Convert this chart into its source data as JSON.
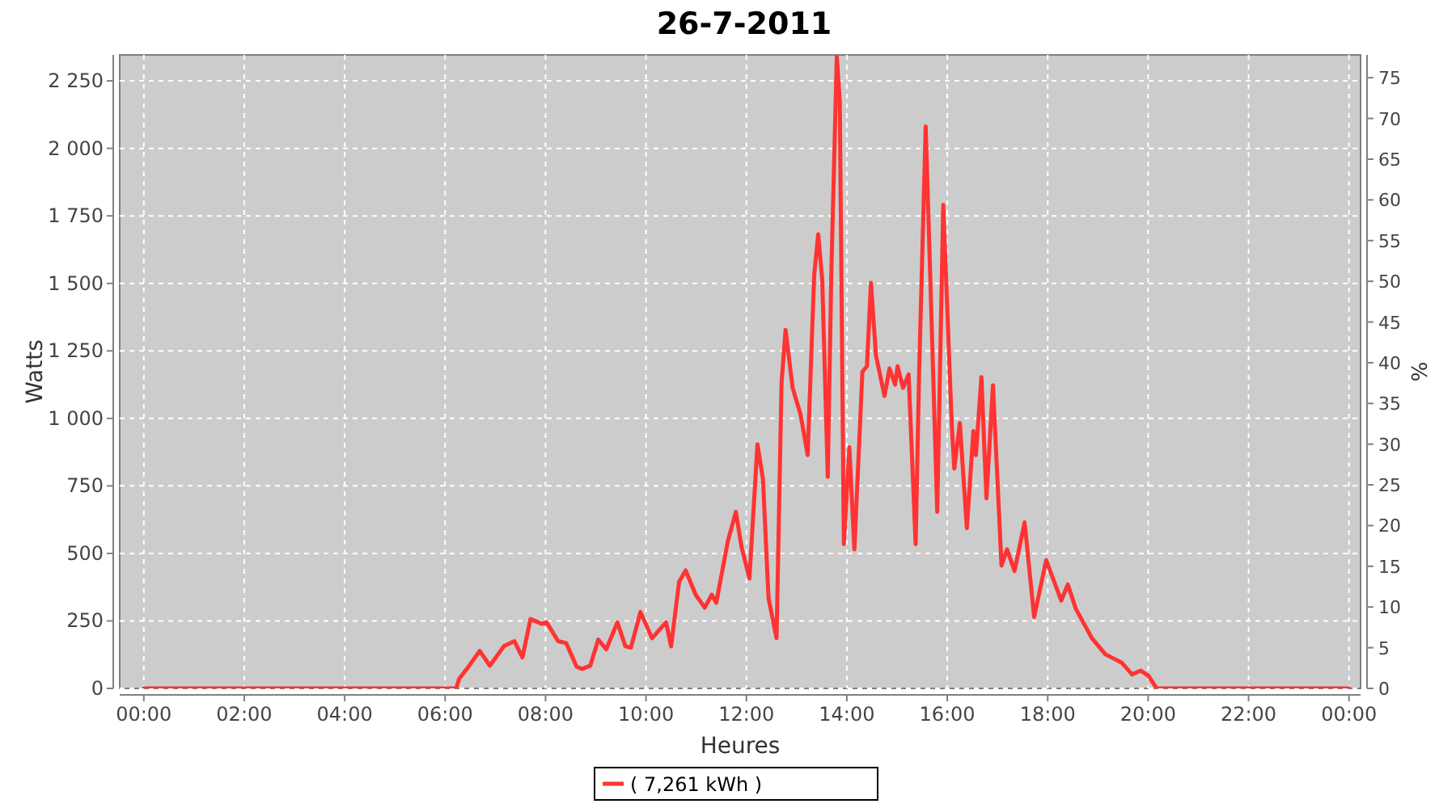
{
  "chart_data": {
    "type": "line",
    "title": "26-7-2011",
    "xlabel": "Heures",
    "ylabel": "Watts",
    "y2label": "%",
    "xlim": [
      -0.48,
      24.23
    ],
    "ylim": [
      0,
      2346
    ],
    "y2lim": [
      0,
      77.8
    ],
    "xticks": [
      {
        "value": 0,
        "label": "00:00"
      },
      {
        "value": 2,
        "label": "02:00"
      },
      {
        "value": 4,
        "label": "04:00"
      },
      {
        "value": 6,
        "label": "06:00"
      },
      {
        "value": 8,
        "label": "08:00"
      },
      {
        "value": 10,
        "label": "10:00"
      },
      {
        "value": 12,
        "label": "12:00"
      },
      {
        "value": 14,
        "label": "14:00"
      },
      {
        "value": 16,
        "label": "16:00"
      },
      {
        "value": 18,
        "label": "18:00"
      },
      {
        "value": 20,
        "label": "20:00"
      },
      {
        "value": 22,
        "label": "22:00"
      },
      {
        "value": 24,
        "label": "00:00"
      }
    ],
    "yticks": [
      0,
      250,
      500,
      750,
      {
        "value": 1000,
        "label": "1 000"
      },
      {
        "value": 1250,
        "label": "1 250"
      },
      {
        "value": 1500,
        "label": "1 500"
      },
      {
        "value": 1750,
        "label": "1 750"
      },
      {
        "value": 2000,
        "label": "2 000"
      },
      {
        "value": 2250,
        "label": "2 250"
      }
    ],
    "y2ticks": [
      0,
      5,
      10,
      15,
      20,
      25,
      30,
      35,
      40,
      45,
      50,
      55,
      60,
      65,
      70,
      75
    ],
    "grid": true,
    "legend": "bottom",
    "marker": "none",
    "line_style": "solid",
    "series": [
      {
        "name": "( 7,261 kWh )",
        "color": "#ff3333",
        "x": [
          0,
          6.22,
          6.28,
          6.48,
          6.69,
          6.89,
          7.17,
          7.38,
          7.54,
          7.7,
          7.93,
          8.02,
          8.25,
          8.41,
          8.62,
          8.73,
          8.89,
          9.05,
          9.21,
          9.43,
          9.59,
          9.7,
          9.89,
          10.12,
          10.4,
          10.5,
          10.66,
          10.79,
          10.99,
          11.17,
          11.31,
          11.4,
          11.63,
          11.79,
          11.9,
          12.06,
          12.22,
          12.33,
          12.44,
          12.6,
          12.7,
          12.78,
          12.92,
          13.08,
          13.22,
          13.35,
          13.43,
          13.51,
          13.62,
          13.69,
          13.8,
          13.86,
          13.94,
          14.05,
          14.15,
          14.31,
          14.4,
          14.48,
          14.58,
          14.75,
          14.85,
          14.96,
          15.01,
          15.12,
          15.23,
          15.37,
          15.44,
          15.57,
          15.66,
          15.8,
          15.92,
          16.09,
          16.14,
          16.25,
          16.39,
          16.52,
          16.57,
          16.68,
          16.78,
          16.91,
          17.08,
          17.19,
          17.34,
          17.54,
          17.73,
          17.97,
          18.27,
          18.4,
          18.56,
          18.88,
          19.15,
          19.47,
          19.68,
          19.85,
          20.01,
          20.17,
          24
        ],
        "values": [
          0,
          0,
          36,
          84,
          139,
          84,
          156,
          175,
          115,
          257,
          239,
          245,
          175,
          168,
          80,
          72,
          84,
          181,
          145,
          245,
          156,
          151,
          283,
          186,
          245,
          156,
          395,
          437,
          347,
          299,
          347,
          317,
          545,
          654,
          527,
          407,
          904,
          774,
          335,
          186,
          1133,
          1328,
          1113,
          1013,
          864,
          1532,
          1682,
          1514,
          784,
          1532,
          2340,
          2172,
          534,
          893,
          515,
          1173,
          1193,
          1502,
          1233,
          1083,
          1185,
          1125,
          1193,
          1113,
          1163,
          534,
          1173,
          2081,
          1532,
          654,
          1791,
          974,
          814,
          983,
          594,
          953,
          864,
          1153,
          704,
          1123,
          455,
          515,
          435,
          615,
          265,
          475,
          325,
          385,
          295,
          186,
          126,
          96,
          52,
          66,
          46,
          0,
          0
        ]
      }
    ]
  }
}
